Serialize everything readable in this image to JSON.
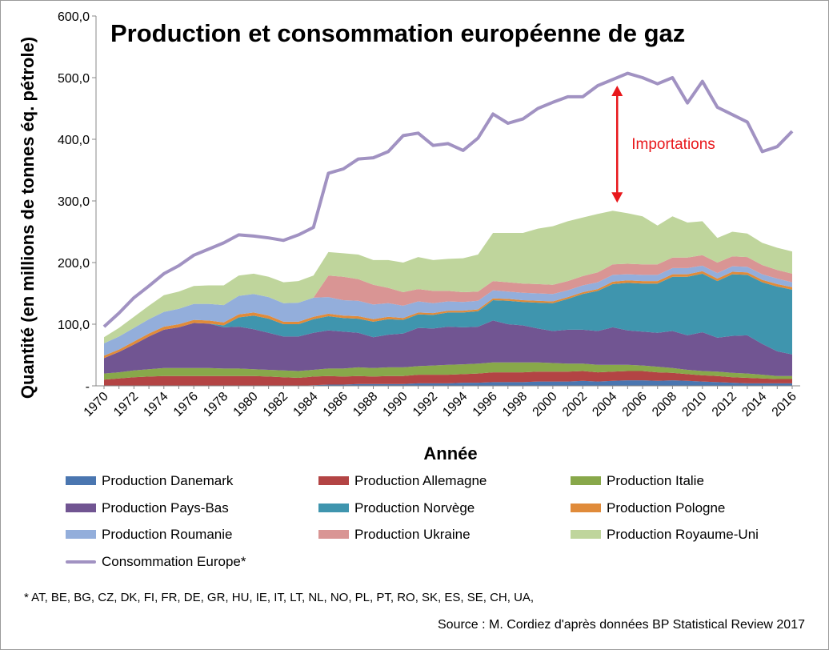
{
  "chart_data": {
    "type": "area",
    "title": "Production et consommation européenne de gaz",
    "xlabel": "Année",
    "ylabel": "Quantité (en millions de tonnes éq. pétrole)",
    "ylim": [
      0,
      600
    ],
    "y_ticks": [
      "-",
      "100,0",
      "200,0",
      "300,0",
      "400,0",
      "500,0",
      "600,0"
    ],
    "x_tick_labels": [
      "1970",
      "1972",
      "1974",
      "1976",
      "1978",
      "1980",
      "1982",
      "1984",
      "1986",
      "1988",
      "1990",
      "1992",
      "1994",
      "1996",
      "1998",
      "2000",
      "2002",
      "2004",
      "2006",
      "2008",
      "2010",
      "2012",
      "2014",
      "2016"
    ],
    "x": [
      1970,
      1971,
      1972,
      1973,
      1974,
      1975,
      1976,
      1977,
      1978,
      1979,
      1980,
      1981,
      1982,
      1983,
      1984,
      1985,
      1986,
      1987,
      1988,
      1989,
      1990,
      1991,
      1992,
      1993,
      1994,
      1995,
      1996,
      1997,
      1998,
      1999,
      2000,
      2001,
      2002,
      2003,
      2004,
      2005,
      2006,
      2007,
      2008,
      2009,
      2010,
      2011,
      2012,
      2013,
      2014,
      2015,
      2016
    ],
    "stacked_series": [
      {
        "name": "Production Danemark",
        "color": "#4a76b0",
        "values": [
          0,
          0,
          0,
          0,
          0,
          0,
          0,
          0,
          0,
          0,
          0,
          0,
          0,
          0,
          1,
          2,
          2,
          3,
          3,
          3,
          3,
          4,
          4,
          4,
          5,
          5,
          6,
          6,
          6,
          7,
          7,
          7,
          8,
          7,
          8,
          9,
          9,
          8,
          9,
          8,
          7,
          6,
          5,
          4,
          4,
          4,
          4
        ]
      },
      {
        "name": "Production Allemagne",
        "color": "#b34444",
        "values": [
          10,
          12,
          14,
          15,
          16,
          16,
          16,
          16,
          16,
          16,
          16,
          15,
          14,
          13,
          14,
          14,
          13,
          13,
          12,
          13,
          13,
          14,
          14,
          14,
          14,
          15,
          16,
          16,
          16,
          16,
          16,
          16,
          16,
          15,
          15,
          15,
          15,
          14,
          12,
          11,
          10,
          10,
          9,
          9,
          8,
          7,
          7
        ]
      },
      {
        "name": "Production Italie",
        "color": "#88a84a",
        "values": [
          10,
          10,
          11,
          12,
          13,
          13,
          13,
          13,
          12,
          12,
          11,
          11,
          11,
          11,
          11,
          12,
          13,
          14,
          14,
          14,
          14,
          14,
          15,
          16,
          16,
          16,
          16,
          16,
          16,
          15,
          14,
          13,
          12,
          12,
          11,
          10,
          9,
          9,
          8,
          7,
          7,
          7,
          7,
          7,
          6,
          5,
          5
        ]
      },
      {
        "name": "Production Pays-Bas",
        "color": "#715592",
        "values": [
          25,
          33,
          42,
          53,
          62,
          66,
          73,
          72,
          67,
          68,
          65,
          60,
          55,
          56,
          60,
          62,
          60,
          56,
          50,
          53,
          55,
          62,
          60,
          62,
          60,
          60,
          68,
          62,
          60,
          55,
          52,
          55,
          55,
          55,
          61,
          56,
          55,
          55,
          60,
          56,
          63,
          55,
          60,
          62,
          50,
          40,
          35
        ]
      },
      {
        "name": "Production Norvège",
        "color": "#3f95ae",
        "values": [
          0,
          0,
          0,
          0,
          0,
          0,
          0,
          0,
          3,
          15,
          22,
          23,
          20,
          20,
          22,
          23,
          22,
          23,
          25,
          25,
          22,
          22,
          22,
          23,
          24,
          25,
          33,
          38,
          38,
          42,
          45,
          50,
          58,
          65,
          70,
          77,
          78,
          80,
          88,
          95,
          95,
          92,
          100,
          98,
          100,
          105,
          105
        ]
      },
      {
        "name": "Production Pologne",
        "color": "#e08b3a",
        "values": [
          4,
          4,
          5,
          5,
          5,
          5,
          5,
          5,
          5,
          5,
          5,
          5,
          4,
          4,
          4,
          4,
          4,
          4,
          4,
          4,
          3,
          3,
          3,
          3,
          3,
          3,
          3,
          3,
          3,
          3,
          3,
          3,
          3,
          3,
          4,
          4,
          4,
          4,
          4,
          4,
          4,
          4,
          4,
          4,
          4,
          4,
          4
        ]
      },
      {
        "name": "Production Roumanie",
        "color": "#93aedb",
        "values": [
          20,
          21,
          22,
          23,
          24,
          25,
          26,
          27,
          28,
          30,
          30,
          30,
          30,
          31,
          31,
          27,
          25,
          25,
          24,
          22,
          20,
          18,
          16,
          15,
          14,
          14,
          13,
          12,
          12,
          12,
          12,
          11,
          11,
          11,
          11,
          10,
          10,
          10,
          10,
          10,
          9,
          9,
          9,
          9,
          9,
          9,
          8
        ]
      },
      {
        "name": "Production Ukraine",
        "color": "#d99594",
        "values": [
          0,
          0,
          0,
          0,
          0,
          0,
          0,
          0,
          0,
          0,
          0,
          0,
          0,
          0,
          0,
          35,
          38,
          35,
          32,
          25,
          22,
          20,
          20,
          17,
          16,
          15,
          15,
          15,
          15,
          15,
          15,
          15,
          15,
          16,
          17,
          17,
          17,
          17,
          17,
          17,
          17,
          17,
          16,
          16,
          15,
          14,
          14
        ]
      },
      {
        "name": "Production Royaume-Uni",
        "color": "#bfd59c",
        "values": [
          10,
          14,
          18,
          22,
          27,
          28,
          29,
          30,
          32,
          33,
          33,
          33,
          34,
          35,
          36,
          38,
          38,
          40,
          40,
          45,
          48,
          52,
          50,
          52,
          55,
          60,
          78,
          80,
          82,
          90,
          95,
          97,
          95,
          95,
          87,
          82,
          78,
          63,
          67,
          57,
          55,
          40,
          40,
          38,
          36,
          36,
          36
        ]
      }
    ],
    "line_series": {
      "name": "Consommation Europe*",
      "color": "#a192c2",
      "values": [
        96,
        118,
        143,
        162,
        182,
        195,
        212,
        222,
        232,
        245,
        243,
        240,
        236,
        245,
        257,
        345,
        352,
        368,
        370,
        380,
        406,
        410,
        390,
        393,
        382,
        402,
        441,
        426,
        433,
        450,
        460,
        469,
        469,
        487,
        497,
        507,
        500,
        490,
        500,
        459,
        494,
        452,
        440,
        428,
        380,
        388,
        413
      ]
    },
    "annotation": {
      "text": "Importations",
      "color": "#e8181c",
      "x": 2004.3,
      "y_from": 297,
      "y_to": 487
    }
  },
  "footnote": "* AT, BE, BG, CZ, DK, FI, FR, DE, GR, HU, IE, IT, LT, NL, NO, PL, PT, RO, SK, ES, SE, CH, UA,",
  "source": "Source : M. Cordiez d'après données BP Statistical Review 2017"
}
